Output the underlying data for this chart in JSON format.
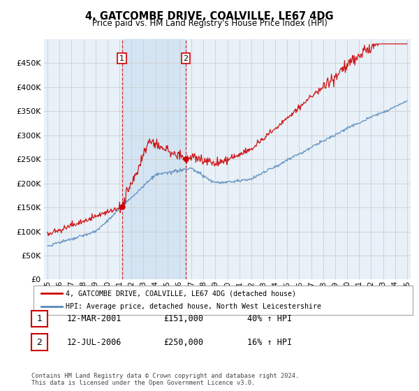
{
  "title": "4, GATCOMBE DRIVE, COALVILLE, LE67 4DG",
  "subtitle": "Price paid vs. HM Land Registry's House Price Index (HPI)",
  "legend_line1": "4, GATCOMBE DRIVE, COALVILLE, LE67 4DG (detached house)",
  "legend_line2": "HPI: Average price, detached house, North West Leicestershire",
  "transaction1_label": "1",
  "transaction1_date": "12-MAR-2001",
  "transaction1_price": "£151,000",
  "transaction1_hpi": "40% ↑ HPI",
  "transaction2_label": "2",
  "transaction2_date": "12-JUL-2006",
  "transaction2_price": "£250,000",
  "transaction2_hpi": "16% ↑ HPI",
  "footer": "Contains HM Land Registry data © Crown copyright and database right 2024.\nThis data is licensed under the Open Government Licence v3.0.",
  "red_color": "#cc0000",
  "blue_color": "#5588bb",
  "shade_color": "#cce0f0",
  "dashed_red": "#cc0000",
  "grid_color": "#cccccc",
  "background_color": "#ffffff",
  "plot_bg_color": "#e8f0f8",
  "transaction1_x": 2001.2,
  "transaction1_y": 151000,
  "transaction2_x": 2006.54,
  "transaction2_y": 250000,
  "ylim": [
    0,
    500000
  ],
  "xlim_start": 1994.7,
  "xlim_end": 2025.3
}
